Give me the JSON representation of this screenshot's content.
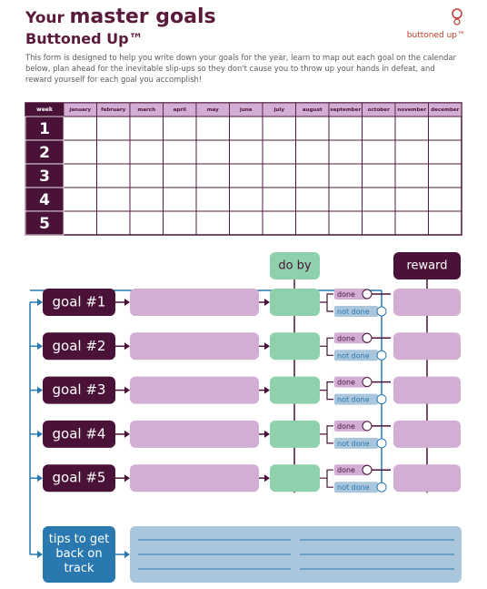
{
  "header": {
    "title_prefix": "Your",
    "title_main": "master goals",
    "subtitle": "Buttoned Up™",
    "logo": "buttoned up™",
    "intro": "This form is designed to help you write down your goals for the year, learn to map out each goal on the calendar below, plan ahead for the inevitable slip-ups so they don't cause you to throw up your hands in defeat, and reward yourself for each goal you accomplish!"
  },
  "calendar": {
    "week_label": "week",
    "months": [
      "january",
      "february",
      "march",
      "april",
      "may",
      "june",
      "july",
      "august",
      "september",
      "october",
      "november",
      "december"
    ],
    "weeks": [
      "1",
      "2",
      "3",
      "4",
      "5"
    ]
  },
  "planner": {
    "do_by": "do by",
    "reward": "reward",
    "goals": [
      {
        "label": "goal #1",
        "done": "done",
        "not_done": "not done"
      },
      {
        "label": "goal #2",
        "done": "done",
        "not_done": "not done"
      },
      {
        "label": "goal #3",
        "done": "done",
        "not_done": "not done"
      },
      {
        "label": "goal #4",
        "done": "done",
        "not_done": "not done"
      },
      {
        "label": "goal #5",
        "done": "done",
        "not_done": "not done"
      }
    ],
    "tips": "tips to get back on track"
  }
}
